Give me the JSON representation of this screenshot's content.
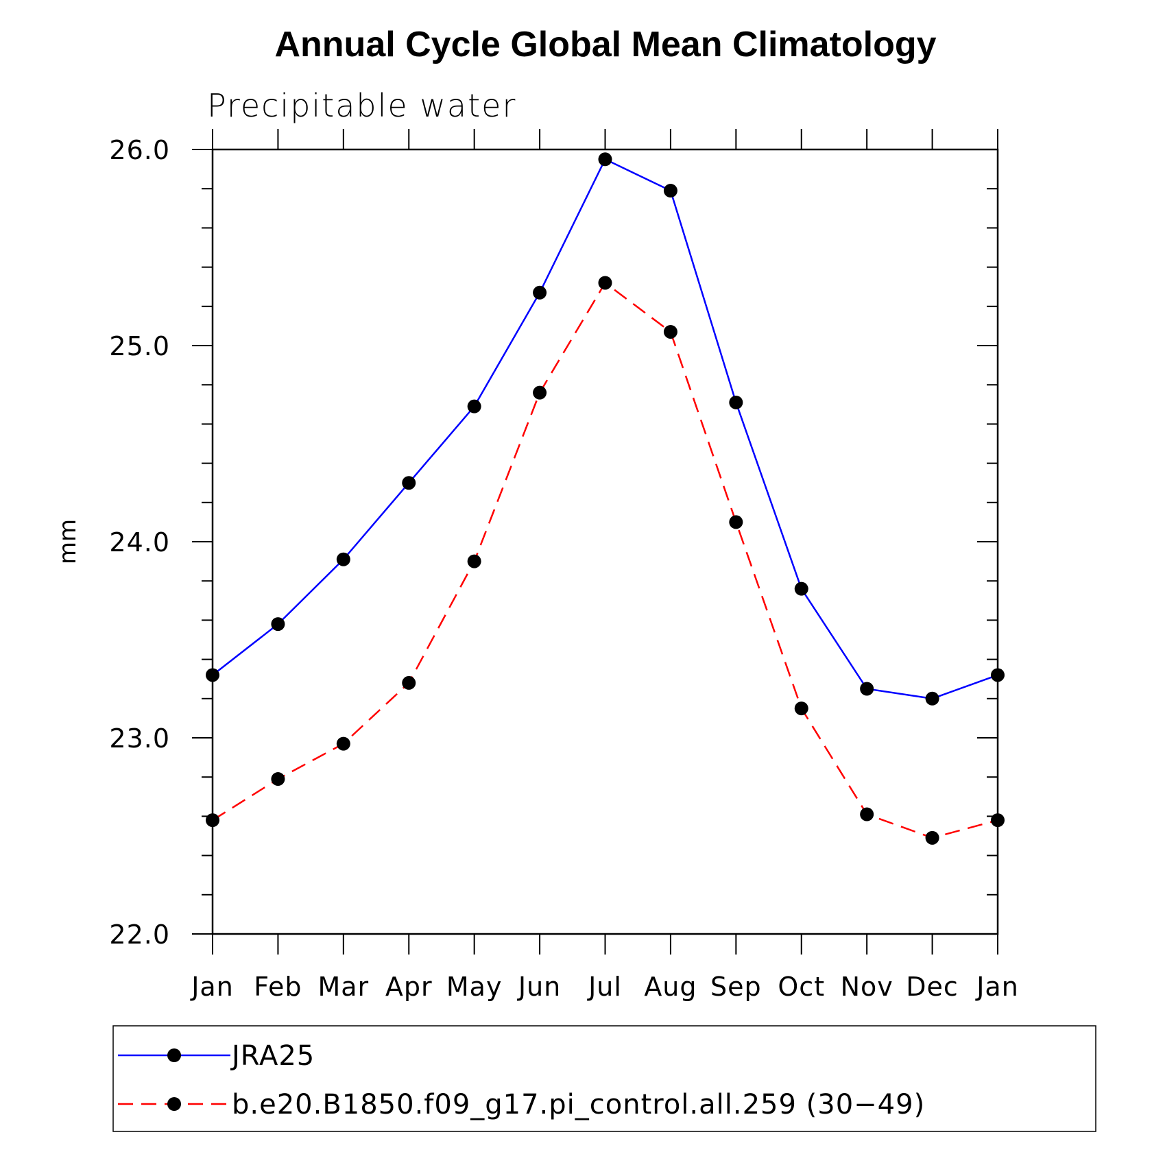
{
  "chart_data": {
    "type": "line",
    "title": "Annual Cycle Global Mean Climatology",
    "subtitle": "Precipitable water",
    "xlabel": "",
    "ylabel": "mm",
    "categories": [
      "Jan",
      "Feb",
      "Mar",
      "Apr",
      "May",
      "Jun",
      "Jul",
      "Aug",
      "Sep",
      "Oct",
      "Nov",
      "Dec",
      "Jan"
    ],
    "ylim": [
      22.0,
      26.0
    ],
    "yticks": [
      "22.0",
      "23.0",
      "24.0",
      "25.0",
      "26.0"
    ],
    "yminor_step": 0.2,
    "grid": false,
    "legend_position": "bottom",
    "series": [
      {
        "name": "JRA25",
        "color": "#0000ff",
        "dash": "solid",
        "marker": "filled-circle",
        "values": [
          23.32,
          23.58,
          23.91,
          24.3,
          24.69,
          25.27,
          25.95,
          25.79,
          24.71,
          23.76,
          23.25,
          23.2,
          23.32
        ]
      },
      {
        "name": "b.e20.B1850.f09_g17.pi_control.all.259 (30−49)",
        "color": "#ff0000",
        "dash": "dashed",
        "marker": "filled-circle",
        "values": [
          22.58,
          22.79,
          22.97,
          23.28,
          23.9,
          24.76,
          25.32,
          25.07,
          24.1,
          23.15,
          22.61,
          22.49,
          22.58
        ]
      }
    ]
  }
}
